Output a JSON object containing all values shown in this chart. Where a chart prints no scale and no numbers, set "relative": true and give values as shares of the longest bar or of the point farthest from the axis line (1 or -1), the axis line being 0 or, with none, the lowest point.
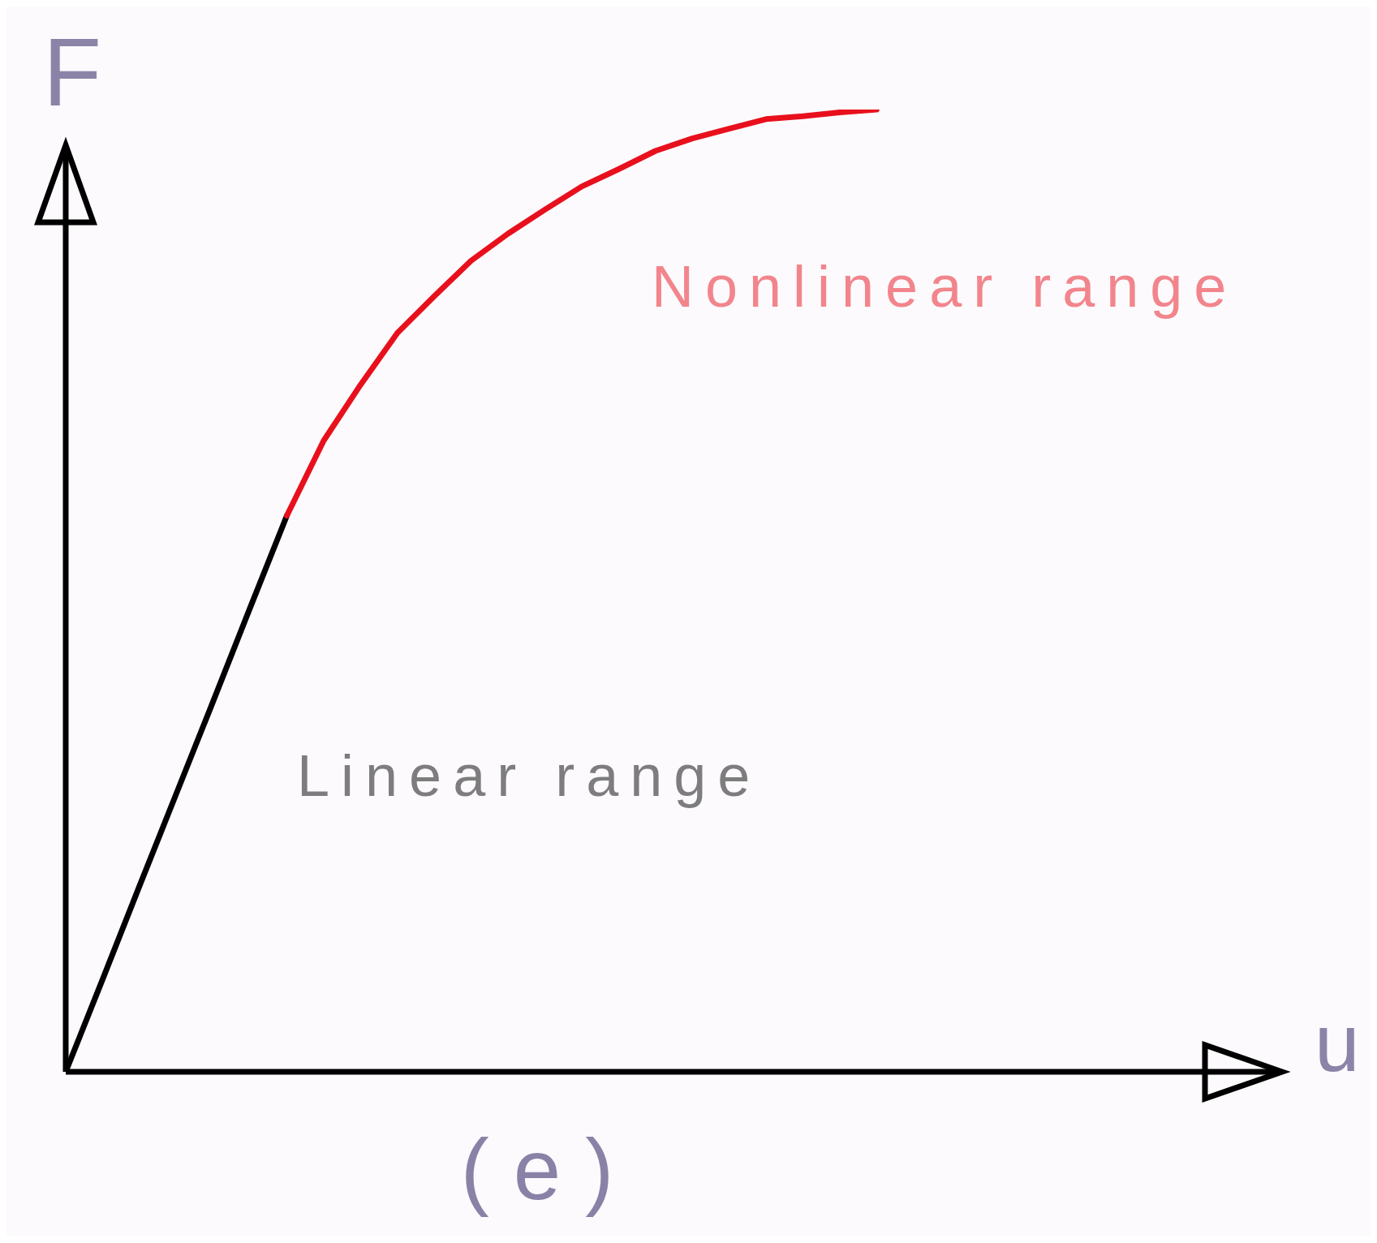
{
  "chart_data": {
    "type": "line",
    "relative": true,
    "xlabel": "u",
    "ylabel": "F",
    "annotations": [
      "(e)"
    ],
    "categories": [
      null,
      null,
      null,
      null,
      null,
      null,
      null,
      null,
      null,
      null,
      null,
      null,
      null,
      null,
      null,
      null,
      null,
      null,
      null,
      null,
      null,
      null,
      null,
      null,
      null,
      null,
      null,
      null,
      null,
      null,
      null,
      null,
      null,
      null
    ],
    "series": [
      {
        "name": "Linear range",
        "color": "#000000",
        "values": [
          0,
          0.096,
          0.193,
          0.289,
          0.385,
          0.482,
          0.578,
          null,
          null,
          null,
          null,
          null,
          null,
          null,
          null,
          null,
          null,
          null,
          null,
          null,
          null,
          null,
          null,
          null,
          null,
          null,
          null,
          null,
          null,
          null,
          null,
          null,
          null,
          null
        ]
      },
      {
        "name": "Nonlinear range",
        "color": "#e8101c",
        "values": [
          null,
          null,
          null,
          null,
          null,
          null,
          0.578,
          0.656,
          0.714,
          0.768,
          0.806,
          0.843,
          0.871,
          0.896,
          0.92,
          0.938,
          0.957,
          0.97,
          0.98,
          0.99,
          0.993,
          0.997,
          1,
          null,
          null,
          null,
          null,
          null,
          null,
          null,
          null,
          null,
          null,
          null
        ]
      }
    ]
  }
}
